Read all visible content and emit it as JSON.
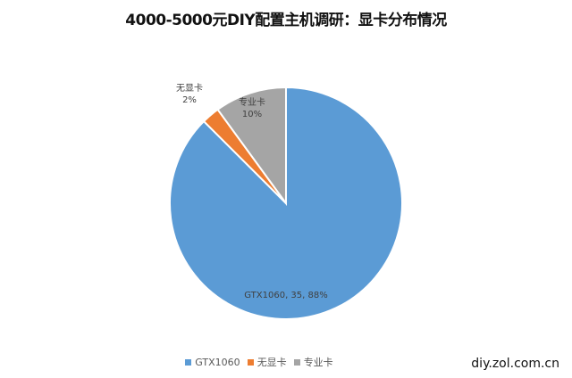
{
  "chart_data": {
    "type": "pie",
    "title": "4000-5000元DIY配置主机调研：显卡分布情况",
    "categories": [
      "GTX1060",
      "无显卡",
      "专业卡"
    ],
    "values": [
      35,
      1,
      4
    ],
    "percents": [
      88,
      2,
      10
    ],
    "colors": [
      "#5B9BD5",
      "#ED7D31",
      "#A5A5A5"
    ],
    "data_labels": [
      {
        "line1": "GTX1060, 35, 88%",
        "line2": ""
      },
      {
        "line1": "无显卡",
        "line2": "2%"
      },
      {
        "line1": "专业卡",
        "line2": "10%"
      }
    ],
    "start_angle": "top",
    "direction": "clockwise",
    "legend_position": "bottom"
  },
  "watermark": "diy.zol.com.cn"
}
